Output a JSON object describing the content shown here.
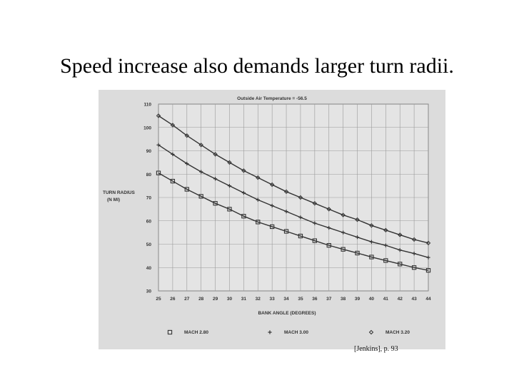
{
  "slide": {
    "title": "Speed increase also demands larger turn radii.",
    "citation": "[Jenkins], p. 93"
  },
  "chart_data": {
    "type": "line",
    "title": "Outside Air Temperature = -56.5",
    "xlabel": "BANK ANGLE (DEGREES)",
    "ylabel_lines": [
      "TURN RADIUS",
      "(N MI)"
    ],
    "x": [
      25,
      26,
      27,
      28,
      29,
      30,
      31,
      32,
      33,
      34,
      35,
      36,
      37,
      38,
      39,
      40,
      41,
      42,
      43,
      44
    ],
    "x_tick_labels": [
      "25",
      "26",
      "27",
      "28",
      "29",
      "30",
      "31",
      "32",
      "33",
      "34",
      "35",
      "36",
      "37",
      "38",
      "39",
      "40",
      "41",
      "42",
      "43",
      "44"
    ],
    "y_ticks": [
      30,
      40,
      50,
      60,
      70,
      80,
      90,
      100,
      110
    ],
    "ylim": [
      30,
      110
    ],
    "xlim": [
      25,
      44
    ],
    "grid": true,
    "legend_position": "bottom",
    "series": [
      {
        "name": "MACH 2.80",
        "marker": "square",
        "legend_symbol": "□",
        "values": [
          80.5,
          77,
          73.5,
          70.5,
          67.5,
          65,
          62,
          59.5,
          57.5,
          55.5,
          53.5,
          51.5,
          49.5,
          47.8,
          46.2,
          44.5,
          43,
          41.5,
          40,
          38.8
        ]
      },
      {
        "name": "MACH 3.00",
        "marker": "plus",
        "legend_symbol": "+",
        "values": [
          92.5,
          88.5,
          84.5,
          81,
          78,
          75,
          72,
          69,
          66.5,
          64,
          61.5,
          59,
          57,
          55,
          53,
          51,
          49.5,
          47.5,
          46,
          44.3
        ]
      },
      {
        "name": "MACH 3.20",
        "marker": "diamond",
        "legend_symbol": "◇",
        "values": [
          105,
          101,
          96.5,
          92.5,
          88.5,
          85,
          81.5,
          78.5,
          75.5,
          72.5,
          70,
          67.5,
          65,
          62.5,
          60.5,
          58,
          56,
          54,
          52,
          50.5
        ]
      }
    ]
  }
}
